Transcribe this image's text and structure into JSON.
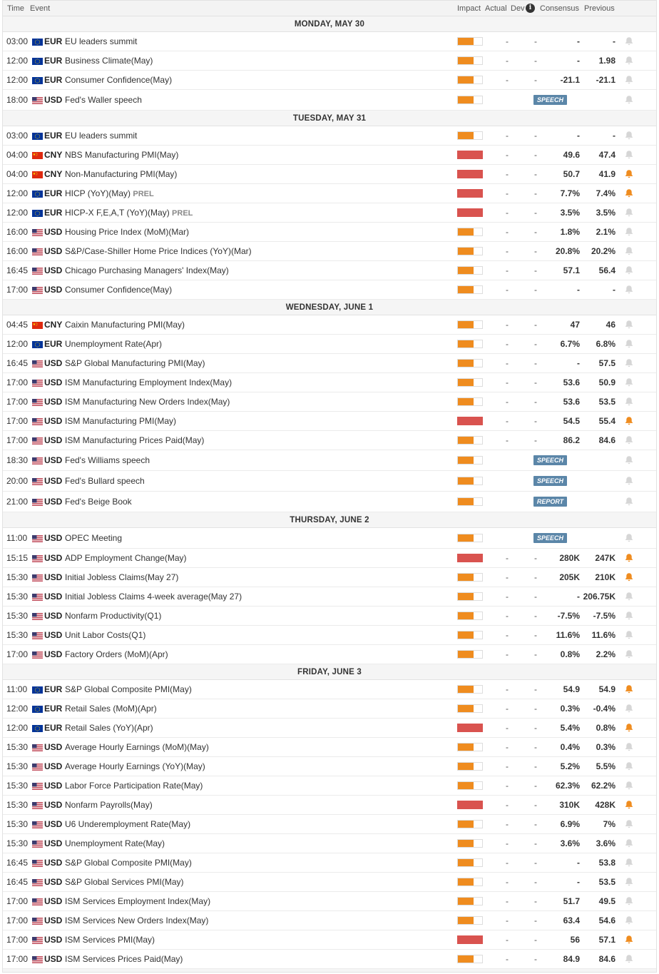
{
  "header": {
    "time": "Time",
    "event": "Event",
    "impact": "Impact",
    "actual": "Actual",
    "dev": "Dev",
    "info": "i",
    "consensus": "Consensus",
    "previous": "Previous"
  },
  "colors": {
    "medium": "#ef8c1f",
    "high": "#d9534f",
    "badge": "#5b86a8",
    "bell_active": "#ef8c1f"
  },
  "days": [
    {
      "label": "MONDAY, MAY 30",
      "rows": [
        {
          "time": "03:00",
          "cur": "EUR",
          "flag": "eu-flag-icon",
          "ev": "EU leaders summit",
          "imp": "med",
          "act": "-",
          "dev": "-",
          "cons": "-",
          "prev": "-",
          "bell": false
        },
        {
          "time": "12:00",
          "cur": "EUR",
          "flag": "eu-flag-icon",
          "ev": "Business Climate(May)",
          "imp": "med",
          "act": "-",
          "dev": "-",
          "cons": "-",
          "prev": "1.98",
          "bell": false
        },
        {
          "time": "12:00",
          "cur": "EUR",
          "flag": "eu-flag-icon",
          "ev": "Consumer Confidence(May)",
          "imp": "med",
          "act": "-",
          "dev": "-",
          "cons": "-21.1",
          "prev": "-21.1",
          "bell": false
        },
        {
          "time": "18:00",
          "cur": "USD",
          "flag": "us-flag-icon",
          "ev": "Fed's Waller speech",
          "imp": "med",
          "badge": "SPEECH",
          "bell": false
        }
      ]
    },
    {
      "label": "TUESDAY, MAY 31",
      "rows": [
        {
          "time": "03:00",
          "cur": "EUR",
          "flag": "eu-flag-icon",
          "ev": "EU leaders summit",
          "imp": "med",
          "act": "-",
          "dev": "-",
          "cons": "-",
          "prev": "-",
          "bell": false
        },
        {
          "time": "04:00",
          "cur": "CNY",
          "flag": "cn-flag-icon",
          "ev": "NBS Manufacturing PMI(May)",
          "imp": "high",
          "act": "-",
          "dev": "-",
          "cons": "49.6",
          "prev": "47.4",
          "bell": false
        },
        {
          "time": "04:00",
          "cur": "CNY",
          "flag": "cn-flag-icon",
          "ev": "Non-Manufacturing PMI(May)",
          "imp": "high",
          "act": "-",
          "dev": "-",
          "cons": "50.7",
          "prev": "41.9",
          "bell": true
        },
        {
          "time": "12:00",
          "cur": "EUR",
          "flag": "eu-flag-icon",
          "ev": "HICP (YoY)(May)",
          "prel": "PREL",
          "imp": "high",
          "act": "-",
          "dev": "-",
          "cons": "7.7%",
          "prev": "7.4%",
          "bell": true
        },
        {
          "time": "12:00",
          "cur": "EUR",
          "flag": "eu-flag-icon",
          "ev": "HICP-X F,E,A,T (YoY)(May)",
          "prel": "PREL",
          "imp": "high",
          "act": "-",
          "dev": "-",
          "cons": "3.5%",
          "prev": "3.5%",
          "bell": false
        },
        {
          "time": "16:00",
          "cur": "USD",
          "flag": "us-flag-icon",
          "ev": "Housing Price Index (MoM)(Mar)",
          "imp": "med",
          "act": "-",
          "dev": "-",
          "cons": "1.8%",
          "prev": "2.1%",
          "bell": false
        },
        {
          "time": "16:00",
          "cur": "USD",
          "flag": "us-flag-icon",
          "ev": "S&P/Case-Shiller Home Price Indices (YoY)(Mar)",
          "imp": "med",
          "act": "-",
          "dev": "-",
          "cons": "20.8%",
          "prev": "20.2%",
          "bell": false
        },
        {
          "time": "16:45",
          "cur": "USD",
          "flag": "us-flag-icon",
          "ev": "Chicago Purchasing Managers' Index(May)",
          "imp": "med",
          "act": "-",
          "dev": "-",
          "cons": "57.1",
          "prev": "56.4",
          "bell": false
        },
        {
          "time": "17:00",
          "cur": "USD",
          "flag": "us-flag-icon",
          "ev": "Consumer Confidence(May)",
          "imp": "med",
          "act": "-",
          "dev": "-",
          "cons": "-",
          "prev": "-",
          "bell": false
        }
      ]
    },
    {
      "label": "WEDNESDAY, JUNE 1",
      "rows": [
        {
          "time": "04:45",
          "cur": "CNY",
          "flag": "cn-flag-icon",
          "ev": "Caixin Manufacturing PMI(May)",
          "imp": "med",
          "act": "-",
          "dev": "-",
          "cons": "47",
          "prev": "46",
          "bell": false
        },
        {
          "time": "12:00",
          "cur": "EUR",
          "flag": "eu-flag-icon",
          "ev": "Unemployment Rate(Apr)",
          "imp": "med",
          "act": "-",
          "dev": "-",
          "cons": "6.7%",
          "prev": "6.8%",
          "bell": false
        },
        {
          "time": "16:45",
          "cur": "USD",
          "flag": "us-flag-icon",
          "ev": "S&P Global Manufacturing PMI(May)",
          "imp": "med",
          "act": "-",
          "dev": "-",
          "cons": "-",
          "prev": "57.5",
          "bell": false
        },
        {
          "time": "17:00",
          "cur": "USD",
          "flag": "us-flag-icon",
          "ev": "ISM Manufacturing Employment Index(May)",
          "imp": "med",
          "act": "-",
          "dev": "-",
          "cons": "53.6",
          "prev": "50.9",
          "bell": false
        },
        {
          "time": "17:00",
          "cur": "USD",
          "flag": "us-flag-icon",
          "ev": "ISM Manufacturing New Orders Index(May)",
          "imp": "med",
          "act": "-",
          "dev": "-",
          "cons": "53.6",
          "prev": "53.5",
          "bell": false
        },
        {
          "time": "17:00",
          "cur": "USD",
          "flag": "us-flag-icon",
          "ev": "ISM Manufacturing PMI(May)",
          "imp": "high",
          "act": "-",
          "dev": "-",
          "cons": "54.5",
          "prev": "55.4",
          "bell": true
        },
        {
          "time": "17:00",
          "cur": "USD",
          "flag": "us-flag-icon",
          "ev": "ISM Manufacturing Prices Paid(May)",
          "imp": "med",
          "act": "-",
          "dev": "-",
          "cons": "86.2",
          "prev": "84.6",
          "bell": false
        },
        {
          "time": "18:30",
          "cur": "USD",
          "flag": "us-flag-icon",
          "ev": "Fed's Williams speech",
          "imp": "med",
          "badge": "SPEECH",
          "bell": false
        },
        {
          "time": "20:00",
          "cur": "USD",
          "flag": "us-flag-icon",
          "ev": "Fed's Bullard speech",
          "imp": "med",
          "badge": "SPEECH",
          "bell": false
        },
        {
          "time": "21:00",
          "cur": "USD",
          "flag": "us-flag-icon",
          "ev": "Fed's Beige Book",
          "imp": "med",
          "badge": "REPORT",
          "bell": false
        }
      ]
    },
    {
      "label": "THURSDAY, JUNE 2",
      "rows": [
        {
          "time": "11:00",
          "cur": "USD",
          "flag": "us-flag-icon",
          "ev": "OPEC Meeting",
          "imp": "med",
          "badge": "SPEECH",
          "bell": false
        },
        {
          "time": "15:15",
          "cur": "USD",
          "flag": "us-flag-icon",
          "ev": "ADP Employment Change(May)",
          "imp": "high",
          "act": "-",
          "dev": "-",
          "cons": "280K",
          "prev": "247K",
          "bell": true
        },
        {
          "time": "15:30",
          "cur": "USD",
          "flag": "us-flag-icon",
          "ev": "Initial Jobless Claims(May 27)",
          "imp": "med",
          "act": "-",
          "dev": "-",
          "cons": "205K",
          "prev": "210K",
          "bell": true
        },
        {
          "time": "15:30",
          "cur": "USD",
          "flag": "us-flag-icon",
          "ev": "Initial Jobless Claims 4-week average(May 27)",
          "imp": "med",
          "act": "-",
          "dev": "-",
          "cons": "-",
          "prev": "206.75K",
          "bell": false
        },
        {
          "time": "15:30",
          "cur": "USD",
          "flag": "us-flag-icon",
          "ev": "Nonfarm Productivity(Q1)",
          "imp": "med",
          "act": "-",
          "dev": "-",
          "cons": "-7.5%",
          "prev": "-7.5%",
          "bell": false
        },
        {
          "time": "15:30",
          "cur": "USD",
          "flag": "us-flag-icon",
          "ev": "Unit Labor Costs(Q1)",
          "imp": "med",
          "act": "-",
          "dev": "-",
          "cons": "11.6%",
          "prev": "11.6%",
          "bell": false
        },
        {
          "time": "17:00",
          "cur": "USD",
          "flag": "us-flag-icon",
          "ev": "Factory Orders (MoM)(Apr)",
          "imp": "med",
          "act": "-",
          "dev": "-",
          "cons": "0.8%",
          "prev": "2.2%",
          "bell": false
        }
      ]
    },
    {
      "label": "FRIDAY, JUNE 3",
      "rows": [
        {
          "time": "11:00",
          "cur": "EUR",
          "flag": "eu-flag-icon",
          "ev": "S&P Global Composite PMI(May)",
          "imp": "med",
          "act": "-",
          "dev": "-",
          "cons": "54.9",
          "prev": "54.9",
          "bell": true
        },
        {
          "time": "12:00",
          "cur": "EUR",
          "flag": "eu-flag-icon",
          "ev": "Retail Sales (MoM)(Apr)",
          "imp": "med",
          "act": "-",
          "dev": "-",
          "cons": "0.3%",
          "prev": "-0.4%",
          "bell": false
        },
        {
          "time": "12:00",
          "cur": "EUR",
          "flag": "eu-flag-icon",
          "ev": "Retail Sales (YoY)(Apr)",
          "imp": "high",
          "act": "-",
          "dev": "-",
          "cons": "5.4%",
          "prev": "0.8%",
          "bell": true
        },
        {
          "time": "15:30",
          "cur": "USD",
          "flag": "us-flag-icon",
          "ev": "Average Hourly Earnings (MoM)(May)",
          "imp": "med",
          "act": "-",
          "dev": "-",
          "cons": "0.4%",
          "prev": "0.3%",
          "bell": false
        },
        {
          "time": "15:30",
          "cur": "USD",
          "flag": "us-flag-icon",
          "ev": "Average Hourly Earnings (YoY)(May)",
          "imp": "med",
          "act": "-",
          "dev": "-",
          "cons": "5.2%",
          "prev": "5.5%",
          "bell": false
        },
        {
          "time": "15:30",
          "cur": "USD",
          "flag": "us-flag-icon",
          "ev": "Labor Force Participation Rate(May)",
          "imp": "med",
          "act": "-",
          "dev": "-",
          "cons": "62.3%",
          "prev": "62.2%",
          "bell": false
        },
        {
          "time": "15:30",
          "cur": "USD",
          "flag": "us-flag-icon",
          "ev": "Nonfarm Payrolls(May)",
          "imp": "high",
          "act": "-",
          "dev": "-",
          "cons": "310K",
          "prev": "428K",
          "bell": true
        },
        {
          "time": "15:30",
          "cur": "USD",
          "flag": "us-flag-icon",
          "ev": "U6 Underemployment Rate(May)",
          "imp": "med",
          "act": "-",
          "dev": "-",
          "cons": "6.9%",
          "prev": "7%",
          "bell": false
        },
        {
          "time": "15:30",
          "cur": "USD",
          "flag": "us-flag-icon",
          "ev": "Unemployment Rate(May)",
          "imp": "med",
          "act": "-",
          "dev": "-",
          "cons": "3.6%",
          "prev": "3.6%",
          "bell": false
        },
        {
          "time": "16:45",
          "cur": "USD",
          "flag": "us-flag-icon",
          "ev": "S&P Global Composite PMI(May)",
          "imp": "med",
          "act": "-",
          "dev": "-",
          "cons": "-",
          "prev": "53.8",
          "bell": false
        },
        {
          "time": "16:45",
          "cur": "USD",
          "flag": "us-flag-icon",
          "ev": "S&P Global Services PMI(May)",
          "imp": "med",
          "act": "-",
          "dev": "-",
          "cons": "-",
          "prev": "53.5",
          "bell": false
        },
        {
          "time": "17:00",
          "cur": "USD",
          "flag": "us-flag-icon",
          "ev": "ISM Services Employment Index(May)",
          "imp": "med",
          "act": "-",
          "dev": "-",
          "cons": "51.7",
          "prev": "49.5",
          "bell": false
        },
        {
          "time": "17:00",
          "cur": "USD",
          "flag": "us-flag-icon",
          "ev": "ISM Services New Orders Index(May)",
          "imp": "med",
          "act": "-",
          "dev": "-",
          "cons": "63.4",
          "prev": "54.6",
          "bell": false
        },
        {
          "time": "17:00",
          "cur": "USD",
          "flag": "us-flag-icon",
          "ev": "ISM Services PMI(May)",
          "imp": "high",
          "act": "-",
          "dev": "-",
          "cons": "56",
          "prev": "57.1",
          "bell": true
        },
        {
          "time": "17:00",
          "cur": "USD",
          "flag": "us-flag-icon",
          "ev": "ISM Services Prices Paid(May)",
          "imp": "med",
          "act": "-",
          "dev": "-",
          "cons": "84.9",
          "prev": "84.6",
          "bell": false
        }
      ]
    }
  ]
}
